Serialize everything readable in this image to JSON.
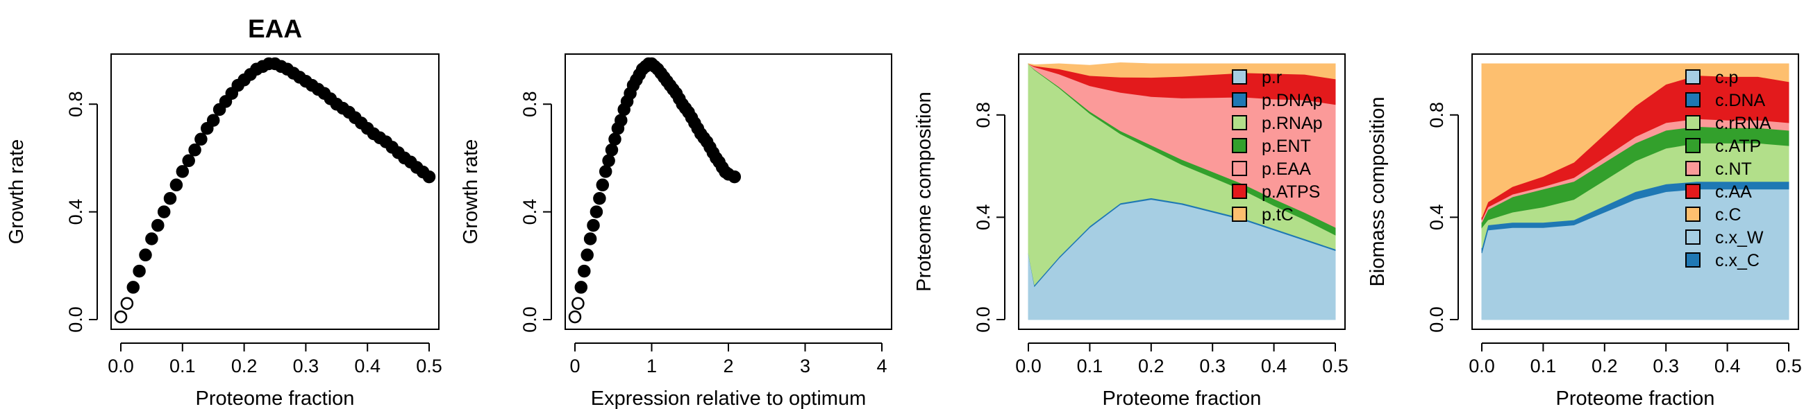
{
  "chart_data": [
    {
      "type": "scatter",
      "title": "EAA",
      "xlabel": "Proteome fraction",
      "ylabel": "Growth rate",
      "xlim": [
        0,
        0.5
      ],
      "ylim": [
        0,
        0.95
      ],
      "xticks": [
        "0.0",
        "0.1",
        "0.2",
        "0.3",
        "0.4",
        "0.5"
      ],
      "xtick_values": [
        0,
        0.1,
        0.2,
        0.3,
        0.4,
        0.5
      ],
      "yticks": [
        "0.0",
        "0.4",
        "0.8"
      ],
      "ytick_values": [
        0,
        0.4,
        0.8
      ],
      "points": {
        "x": [
          0.0,
          0.01,
          0.02,
          0.03,
          0.04,
          0.05,
          0.06,
          0.07,
          0.08,
          0.09,
          0.1,
          0.11,
          0.12,
          0.13,
          0.14,
          0.15,
          0.16,
          0.17,
          0.18,
          0.19,
          0.2,
          0.21,
          0.22,
          0.23,
          0.24,
          0.25,
          0.26,
          0.27,
          0.28,
          0.29,
          0.3,
          0.31,
          0.32,
          0.33,
          0.34,
          0.35,
          0.36,
          0.37,
          0.38,
          0.39,
          0.4,
          0.41,
          0.42,
          0.43,
          0.44,
          0.45,
          0.46,
          0.47,
          0.48,
          0.49,
          0.5
        ],
        "y": [
          0.01,
          0.06,
          0.12,
          0.18,
          0.24,
          0.3,
          0.35,
          0.4,
          0.45,
          0.5,
          0.55,
          0.59,
          0.63,
          0.67,
          0.71,
          0.74,
          0.78,
          0.81,
          0.84,
          0.87,
          0.89,
          0.91,
          0.93,
          0.94,
          0.95,
          0.95,
          0.94,
          0.93,
          0.915,
          0.9,
          0.885,
          0.87,
          0.855,
          0.84,
          0.82,
          0.8,
          0.785,
          0.77,
          0.75,
          0.73,
          0.71,
          0.69,
          0.675,
          0.66,
          0.64,
          0.62,
          0.6,
          0.585,
          0.565,
          0.548,
          0.53
        ],
        "open_count": 2
      }
    },
    {
      "type": "scatter",
      "xlabel": "Expression relative to optimum",
      "ylabel": "Growth rate",
      "xlim": [
        0,
        4
      ],
      "ylim": [
        0,
        0.95
      ],
      "xticks": [
        "0",
        "1",
        "2",
        "3",
        "4"
      ],
      "xtick_values": [
        0,
        1,
        2,
        3,
        4
      ],
      "yticks": [
        "0.0",
        "0.4",
        "0.8"
      ],
      "ytick_values": [
        0,
        0.4,
        0.8
      ],
      "points": {
        "x": [
          0.0,
          0.04,
          0.08,
          0.12,
          0.16,
          0.2,
          0.24,
          0.28,
          0.32,
          0.36,
          0.4,
          0.44,
          0.48,
          0.52,
          0.56,
          0.6,
          0.64,
          0.68,
          0.72,
          0.76,
          0.8,
          0.84,
          0.88,
          0.92,
          0.96,
          1.0,
          1.04,
          1.08,
          1.12,
          1.16,
          1.2,
          1.24,
          1.28,
          1.32,
          1.36,
          1.4,
          1.44,
          1.48,
          1.52,
          1.56,
          1.6,
          1.64,
          1.68,
          1.72,
          1.76,
          1.8,
          1.84,
          1.88,
          1.92,
          1.96,
          2.0,
          2.08
        ],
        "y": [
          0.01,
          0.06,
          0.12,
          0.18,
          0.24,
          0.3,
          0.35,
          0.4,
          0.45,
          0.5,
          0.55,
          0.59,
          0.63,
          0.67,
          0.71,
          0.74,
          0.78,
          0.81,
          0.84,
          0.87,
          0.89,
          0.91,
          0.93,
          0.94,
          0.95,
          0.95,
          0.94,
          0.93,
          0.915,
          0.9,
          0.885,
          0.87,
          0.855,
          0.84,
          0.82,
          0.8,
          0.785,
          0.77,
          0.75,
          0.73,
          0.71,
          0.69,
          0.675,
          0.66,
          0.64,
          0.62,
          0.6,
          0.585,
          0.565,
          0.548,
          0.54,
          0.53
        ],
        "open_count": 2
      }
    },
    {
      "type": "area",
      "xlabel": "Proteome fraction",
      "ylabel": "Proteome composition",
      "xlim": [
        0,
        0.5
      ],
      "ylim": [
        0,
        1
      ],
      "xticks": [
        "0.0",
        "0.1",
        "0.2",
        "0.3",
        "0.4",
        "0.5"
      ],
      "xtick_values": [
        0,
        0.1,
        0.2,
        0.3,
        0.4,
        0.5
      ],
      "yticks": [
        "0.0",
        "0.4",
        "0.8"
      ],
      "ytick_values": [
        0,
        0.4,
        0.8
      ],
      "legend_position": "top-right",
      "x": [
        0.0,
        0.01,
        0.05,
        0.1,
        0.15,
        0.2,
        0.25,
        0.3,
        0.35,
        0.4,
        0.45,
        0.5
      ],
      "series": [
        {
          "name": "p.r",
          "color": "#A6CEE3",
          "values": [
            0.26,
            0.13,
            0.24,
            0.36,
            0.45,
            0.47,
            0.45,
            0.42,
            0.39,
            0.35,
            0.31,
            0.27
          ]
        },
        {
          "name": "p.DNAp",
          "color": "#1F78B4",
          "values": [
            0.0,
            0.006,
            0.006,
            0.006,
            0.006,
            0.006,
            0.006,
            0.006,
            0.006,
            0.006,
            0.006,
            0.006
          ]
        },
        {
          "name": "p.RNAp",
          "color": "#B2DF8A",
          "values": [
            0.74,
            0.84,
            0.66,
            0.44,
            0.27,
            0.19,
            0.15,
            0.13,
            0.11,
            0.09,
            0.075,
            0.055
          ]
        },
        {
          "name": "p.ENT",
          "color": "#33A02C",
          "values": [
            0.0,
            0.002,
            0.004,
            0.008,
            0.012,
            0.016,
            0.02,
            0.022,
            0.024,
            0.026,
            0.028,
            0.03
          ]
        },
        {
          "name": "p.EAA",
          "color": "#FB9A99",
          "values": [
            0.0,
            0.01,
            0.05,
            0.1,
            0.15,
            0.19,
            0.24,
            0.29,
            0.34,
            0.39,
            0.44,
            0.48
          ]
        },
        {
          "name": "p.ATPS",
          "color": "#E31A1C",
          "values": [
            0.0,
            0.004,
            0.02,
            0.04,
            0.06,
            0.075,
            0.085,
            0.09,
            0.095,
            0.1,
            0.1,
            0.1
          ]
        },
        {
          "name": "p.tC",
          "color": "#FDBF6F",
          "values": [
            0.0,
            0.004,
            0.02,
            0.04,
            0.056,
            0.053,
            0.049,
            0.042,
            0.035,
            0.038,
            0.041,
            0.059
          ]
        }
      ]
    },
    {
      "type": "area",
      "xlabel": "Proteome fraction",
      "ylabel": "Biomass composition",
      "xlim": [
        0,
        0.5
      ],
      "ylim": [
        0,
        1
      ],
      "xticks": [
        "0.0",
        "0.1",
        "0.2",
        "0.3",
        "0.4",
        "0.5"
      ],
      "xtick_values": [
        0,
        0.1,
        0.2,
        0.3,
        0.4,
        0.5
      ],
      "yticks": [
        "0.0",
        "0.4",
        "0.8"
      ],
      "ytick_values": [
        0,
        0.4,
        0.8
      ],
      "legend_position": "top-right",
      "x": [
        0.0,
        0.01,
        0.05,
        0.1,
        0.15,
        0.2,
        0.25,
        0.3,
        0.35,
        0.4,
        0.45,
        0.5
      ],
      "series": [
        {
          "name": "c.p",
          "color": "#A6CEE3",
          "values": [
            0.26,
            0.35,
            0.36,
            0.36,
            0.37,
            0.42,
            0.47,
            0.5,
            0.51,
            0.51,
            0.51,
            0.51
          ]
        },
        {
          "name": "c.DNA",
          "color": "#1F78B4",
          "values": [
            0.02,
            0.02,
            0.02,
            0.02,
            0.02,
            0.025,
            0.03,
            0.03,
            0.03,
            0.03,
            0.03,
            0.03
          ]
        },
        {
          "name": "c.rRNA",
          "color": "#B2DF8A",
          "values": [
            0.08,
            0.02,
            0.04,
            0.06,
            0.08,
            0.1,
            0.12,
            0.14,
            0.15,
            0.15,
            0.15,
            0.14
          ]
        },
        {
          "name": "c.ATP",
          "color": "#33A02C",
          "values": [
            0.02,
            0.04,
            0.06,
            0.07,
            0.07,
            0.07,
            0.07,
            0.07,
            0.065,
            0.06,
            0.06,
            0.06
          ]
        },
        {
          "name": "c.NT",
          "color": "#FB9A99",
          "values": [
            0.01,
            0.01,
            0.01,
            0.01,
            0.015,
            0.02,
            0.025,
            0.03,
            0.03,
            0.03,
            0.03,
            0.03
          ]
        },
        {
          "name": "c.AA",
          "color": "#E31A1C",
          "values": [
            0.01,
            0.02,
            0.03,
            0.04,
            0.06,
            0.09,
            0.12,
            0.15,
            0.17,
            0.17,
            0.17,
            0.16
          ]
        },
        {
          "name": "c.C",
          "color": "#FDBF6F",
          "values": [
            0.6,
            0.54,
            0.48,
            0.44,
            0.385,
            0.275,
            0.165,
            0.08,
            0.045,
            0.05,
            0.05,
            0.07
          ]
        },
        {
          "name": "c.x_W",
          "color": "#A6CEE3",
          "values": [
            0,
            0,
            0,
            0,
            0,
            0,
            0,
            0,
            0,
            0,
            0,
            0
          ]
        },
        {
          "name": "c.x_C",
          "color": "#1F78B4",
          "values": [
            0,
            0,
            0,
            0,
            0,
            0,
            0,
            0,
            0,
            0,
            0,
            0
          ]
        }
      ]
    }
  ]
}
